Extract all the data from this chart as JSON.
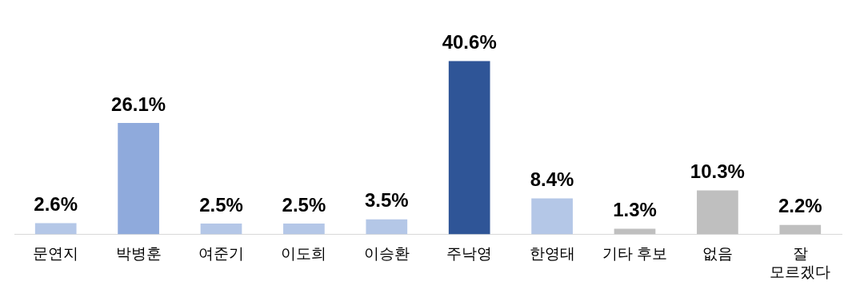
{
  "chart_data": {
    "type": "bar",
    "categories": [
      "문연지",
      "박병훈",
      "여준기",
      "이도희",
      "이승환",
      "주낙영",
      "한영태",
      "기타 후보",
      "없음",
      "잘 모르겠다"
    ],
    "values": [
      2.6,
      26.1,
      2.5,
      2.5,
      3.5,
      40.6,
      8.4,
      1.3,
      10.3,
      2.2
    ],
    "value_labels": [
      "2.6%",
      "26.1%",
      "2.5%",
      "2.5%",
      "3.5%",
      "40.6%",
      "8.4%",
      "1.3%",
      "10.3%",
      "2.2%"
    ],
    "colors": [
      "#b4c7e7",
      "#8faadc",
      "#b4c7e7",
      "#b4c7e7",
      "#b4c7e7",
      "#2f5597",
      "#b4c7e7",
      "#bfbfbf",
      "#bfbfbf",
      "#bfbfbf"
    ],
    "grid": false,
    "legend": false
  }
}
